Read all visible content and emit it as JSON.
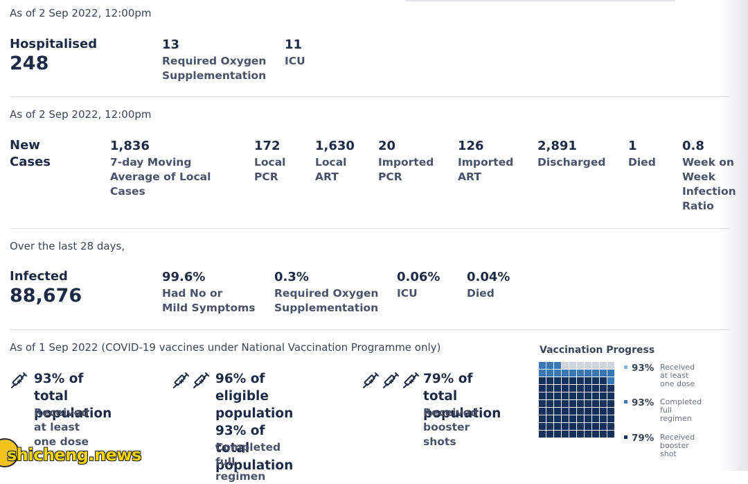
{
  "section_hospital": {
    "as_of": "As of 2 Sep 2022, 12:00pm",
    "title": "Hospitalised",
    "value": "248",
    "metrics": [
      {
        "value": "13",
        "label": "Required Oxygen\nSupplementation"
      },
      {
        "value": "11",
        "label": "ICU"
      }
    ]
  },
  "section_cases": {
    "as_of": "As of 2 Sep 2022, 12:00pm",
    "title": "New\nCases",
    "metrics": [
      {
        "value": "1,836",
        "label": "7-day Moving\nAverage of Local\nCases"
      },
      {
        "value": "172",
        "label": "Local\nPCR"
      },
      {
        "value": "1,630",
        "label": "Local\nART"
      },
      {
        "value": "20",
        "label": "Imported\nPCR"
      },
      {
        "value": "126",
        "label": "Imported\nART"
      },
      {
        "value": "2,891",
        "label": "Discharged"
      },
      {
        "value": "1",
        "label": "Died"
      },
      {
        "value": "0.8",
        "label": "Week on\nWeek\nInfection\nRatio"
      }
    ]
  },
  "section_infected": {
    "as_of": "Over the last 28 days,",
    "title": "Infected",
    "value": "88,676",
    "metrics": [
      {
        "value": "99.6%",
        "label": "Had No or\nMild Symptoms"
      },
      {
        "value": "0.3%",
        "label": "Required Oxygen\nSupplementation"
      },
      {
        "value": "0.06%",
        "label": "ICU"
      },
      {
        "value": "0.04%",
        "label": "Died"
      }
    ]
  },
  "section_vaccination": {
    "as_of": "As of 1 Sep 2022 (COVID-19 vaccines under National Vaccination Programme only)",
    "items": [
      {
        "icon": "syringe-icon",
        "icon_count": 1,
        "headline": "93% of total\npopulation",
        "sub": "Received at least\none dose"
      },
      {
        "icon": "syringe-icon",
        "icon_count": 2,
        "headline": "96% of eligible\npopulation\n93% of total\npopulation",
        "sub": "Completed full\nregimen"
      },
      {
        "icon": "syringe-icon",
        "icon_count": 3,
        "headline": "79% of total\npopulation",
        "sub": "Received booster\nshots"
      }
    ],
    "progress": {
      "title": "Vaccination Progress",
      "legend": [
        {
          "pct": "93%",
          "label": "Received\nat least\none dose",
          "fraction": 0.93,
          "color": "#7ab6e0"
        },
        {
          "pct": "93%",
          "label": "Completed\nfull\nregimen",
          "fraction": 0.93,
          "color": "#3b78b3"
        },
        {
          "pct": "79%",
          "label": "Received\nbooster\nshot",
          "fraction": 0.79,
          "color": "#14315c"
        }
      ],
      "empty_color": "#d0d4db"
    }
  },
  "watermark": {
    "text": "shicheng.news"
  },
  "colors": {
    "primary_text": "#1e2a44",
    "secondary_text": "#4a5168",
    "divider": "#dfe1e6"
  }
}
